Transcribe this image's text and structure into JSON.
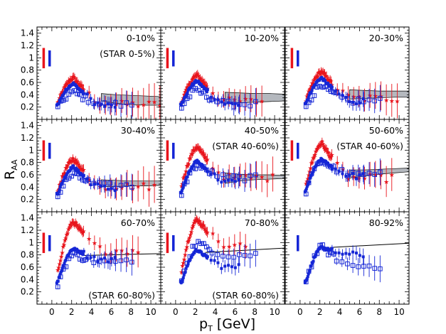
{
  "chart_data": {
    "type": "scatter",
    "title": "",
    "xlabel": "p",
    "xlabel_sub": "T",
    "xlabel_unit": " [GeV]",
    "ylabel": "R",
    "ylabel_sub": "AA",
    "xlim": [
      -1.5,
      11
    ],
    "ylim": [
      0,
      1.5
    ],
    "x_ticks": [
      0,
      2,
      4,
      6,
      8,
      10
    ],
    "y_ticks": [
      0.2,
      0.4,
      0.6,
      0.8,
      1,
      1.2,
      1.4
    ],
    "grid": false,
    "colors": {
      "red_series": "#e8141c",
      "blue_series": "#1526d6",
      "band_fill": "#b4b8be",
      "curve": "#000000"
    },
    "panels": [
      {
        "label": "0-10%",
        "note": "(STAR 0-5%)",
        "red_sys": true,
        "blue_sys": true,
        "red_len": 11.0,
        "red_pk": 0.68,
        "red_tail": 0.25,
        "blue_pk": 0.58,
        "blue_tail": 0.22,
        "open_pk": 0.44,
        "open_tail": 0.24,
        "band": [
          [
            5,
            0.42,
            0.3
          ],
          [
            6.5,
            0.4,
            0.26
          ],
          [
            8,
            0.39,
            0.24
          ],
          [
            9.5,
            0.38,
            0.23
          ],
          [
            11,
            0.37,
            0.23
          ]
        ],
        "curve": null
      },
      {
        "label": "10-20%",
        "note": "",
        "red_sys": true,
        "blue_sys": true,
        "red_len": 9.0,
        "red_pk": 0.72,
        "red_tail": 0.3,
        "blue_pk": 0.62,
        "blue_tail": 0.25,
        "open_pk": 0.47,
        "open_tail": 0.25,
        "band": [
          [
            5,
            0.44,
            0.25
          ],
          [
            6.5,
            0.43,
            0.27
          ],
          [
            8,
            0.42,
            0.28
          ],
          [
            9.5,
            0.42,
            0.29
          ],
          [
            11,
            0.41,
            0.3
          ]
        ],
        "curve": null
      },
      {
        "label": "20-30%",
        "note": "",
        "red_sys": true,
        "blue_sys": true,
        "red_len": 10.0,
        "red_pk": 0.78,
        "red_tail": 0.35,
        "blue_pk": 0.67,
        "blue_tail": 0.3,
        "open_pk": 0.52,
        "open_tail": 0.3,
        "band": [
          [
            5,
            0.48,
            0.33
          ],
          [
            6.5,
            0.47,
            0.34
          ],
          [
            8,
            0.46,
            0.35
          ],
          [
            9.5,
            0.46,
            0.36
          ],
          [
            11,
            0.46,
            0.36
          ]
        ],
        "curve": null
      },
      {
        "label": "30-40%",
        "note": "",
        "red_sys": true,
        "blue_sys": true,
        "red_len": 10.5,
        "red_pk": 0.86,
        "red_tail": 0.42,
        "blue_pk": 0.73,
        "blue_tail": 0.38,
        "open_pk": 0.6,
        "open_tail": 0.42,
        "band": [
          [
            5,
            0.52,
            0.41
          ],
          [
            6.5,
            0.51,
            0.41
          ],
          [
            8,
            0.5,
            0.42
          ],
          [
            9.5,
            0.5,
            0.42
          ],
          [
            11,
            0.5,
            0.43
          ]
        ],
        "curve": null
      },
      {
        "label": "40-50%",
        "note": "(STAR 40-60%)",
        "red_sys": true,
        "blue_sys": true,
        "red_len": 10.0,
        "red_pk": 1.06,
        "red_tail": 0.56,
        "blue_pk": 0.82,
        "blue_tail": 0.48,
        "open_pk": 0.75,
        "open_tail": 0.55,
        "band": [
          [
            5,
            0.63,
            0.46
          ],
          [
            6.5,
            0.61,
            0.5
          ],
          [
            8,
            0.6,
            0.52
          ],
          [
            9.5,
            0.6,
            0.53
          ],
          [
            11,
            0.59,
            0.54
          ]
        ],
        "curve": null
      },
      {
        "label": "50-60%",
        "note": "(STAR 40-60%)",
        "red_sys": true,
        "blue_sys": true,
        "red_len": 9.5,
        "red_pk": 1.12,
        "red_tail": 0.55,
        "blue_pk": 0.85,
        "blue_tail": 0.58,
        "open_pk": 0.82,
        "open_tail": 0.6,
        "band": [
          [
            5,
            0.68,
            0.55
          ],
          [
            6.5,
            0.68,
            0.58
          ],
          [
            8,
            0.69,
            0.61
          ],
          [
            9.5,
            0.7,
            0.63
          ],
          [
            11,
            0.71,
            0.65
          ]
        ],
        "curve": null
      },
      {
        "label": "60-70%",
        "note": "(STAR 60-80%)",
        "red_sys": true,
        "blue_sys": true,
        "red_len": 9.0,
        "red_pk": 1.34,
        "red_tail": 0.88,
        "blue_pk": 0.9,
        "blue_tail": 0.72,
        "open_pk": 0.8,
        "open_tail": 0.68,
        "band": null,
        "curve": [
          [
            3,
            0.79
          ],
          [
            11,
            0.82
          ]
        ]
      },
      {
        "label": "70-80%",
        "note": "(STAR 60-80%)",
        "red_sys": true,
        "blue_sys": true,
        "red_len": 7.5,
        "red_pk": 1.38,
        "red_tail": 0.95,
        "blue_pk": 0.88,
        "blue_tail": 0.6,
        "open_pk": 1.0,
        "open_tail": 0.8,
        "band": null,
        "curve": [
          [
            3,
            0.84
          ],
          [
            11,
            0.91
          ]
        ]
      },
      {
        "label": "80-92%",
        "note": "",
        "red_sys": false,
        "blue_sys": true,
        "red_len": 0,
        "red_pk": 0,
        "red_tail": 0,
        "blue_pk": 0.92,
        "blue_tail": 0.8,
        "open_pk": 0.93,
        "open_tail": 0.62,
        "band": null,
        "curve": [
          [
            3,
            0.92
          ],
          [
            11,
            0.99
          ]
        ]
      }
    ]
  }
}
